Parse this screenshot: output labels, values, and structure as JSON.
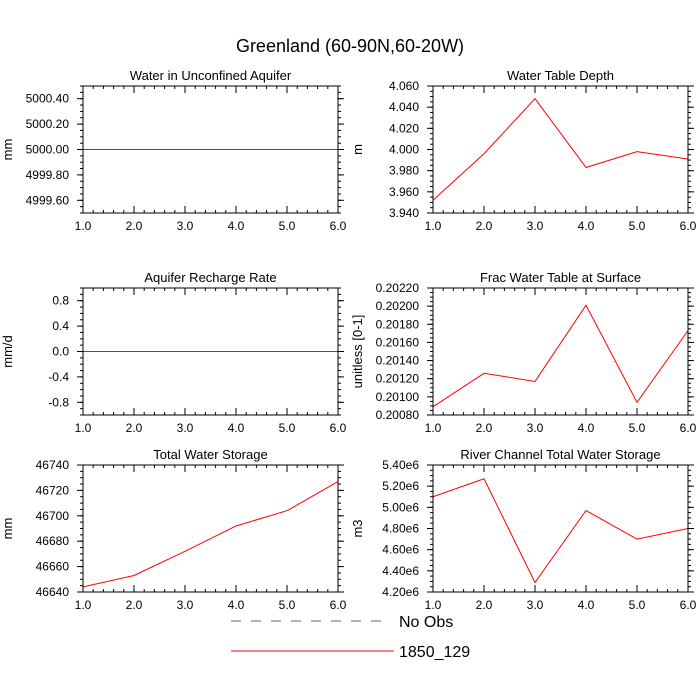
{
  "figure": {
    "title": "Greenland (60-90N,60-20W)"
  },
  "legend": {
    "entries": [
      {
        "label": "No Obs",
        "color": "#5a5aa8",
        "style": "dashed"
      },
      {
        "label": "1850_129",
        "color": "#ff0000",
        "style": "solid"
      }
    ]
  },
  "chart_data": [
    {
      "type": "line",
      "title": "Water in Unconfined Aquifer",
      "xlabel": "",
      "ylabel": "mm",
      "x": [
        1,
        2,
        3,
        4,
        5,
        6
      ],
      "series": [
        {
          "name": "1850_129",
          "values": [
            5000,
            5000,
            5000,
            5000,
            5000,
            5000
          ]
        }
      ],
      "xlim": [
        1,
        6
      ],
      "ylim": [
        4999.5,
        5000.5
      ],
      "xticks": [
        "1.0",
        "2.0",
        "3.0",
        "4.0",
        "5.0",
        "6.0"
      ],
      "yticks": [
        4999.6,
        4999.8,
        5000.0,
        5000.2,
        5000.4
      ],
      "yticklabels": [
        "4999.60",
        "4999.80",
        "5000.00",
        "5000.20",
        "5000.40"
      ]
    },
    {
      "type": "line",
      "title": "Water Table Depth",
      "xlabel": "",
      "ylabel": "m",
      "x": [
        1,
        2,
        3,
        4,
        5,
        6
      ],
      "series": [
        {
          "name": "1850_129",
          "values": [
            3.952,
            3.996,
            4.048,
            3.983,
            3.998,
            3.991
          ]
        }
      ],
      "xlim": [
        1,
        6
      ],
      "ylim": [
        3.94,
        4.06
      ],
      "xticks": [
        "1.0",
        "2.0",
        "3.0",
        "4.0",
        "5.0",
        "6.0"
      ],
      "yticks": [
        3.94,
        3.96,
        3.98,
        4.0,
        4.02,
        4.04,
        4.06
      ],
      "yticklabels": [
        "3.940",
        "3.960",
        "3.980",
        "4.000",
        "4.020",
        "4.040",
        "4.060"
      ]
    },
    {
      "type": "line",
      "title": "Aquifer Recharge Rate",
      "xlabel": "",
      "ylabel": "mm/d",
      "x": [
        1,
        2,
        3,
        4,
        5,
        6
      ],
      "series": [
        {
          "name": "1850_129",
          "values": [
            0,
            0,
            0,
            0,
            0,
            0
          ]
        }
      ],
      "xlim": [
        1,
        6
      ],
      "ylim": [
        -1.0,
        1.0
      ],
      "xticks": [
        "1.0",
        "2.0",
        "3.0",
        "4.0",
        "5.0",
        "6.0"
      ],
      "yticks": [
        -0.8,
        -0.4,
        0.0,
        0.4,
        0.8
      ],
      "yticklabels": [
        "-0.8",
        "-0.4",
        "0.0",
        "0.4",
        "0.8"
      ]
    },
    {
      "type": "line",
      "title": "Frac Water Table at Surface",
      "xlabel": "",
      "ylabel": "unitless [0-1]",
      "x": [
        1,
        2,
        3,
        4,
        5,
        6
      ],
      "series": [
        {
          "name": "1850_129",
          "values": [
            0.20089,
            0.20126,
            0.20117,
            0.20201,
            0.20094,
            0.20173
          ]
        }
      ],
      "xlim": [
        1,
        6
      ],
      "ylim": [
        0.2008,
        0.2022
      ],
      "xticks": [
        "1.0",
        "2.0",
        "3.0",
        "4.0",
        "5.0",
        "6.0"
      ],
      "yticks": [
        0.2008,
        0.201,
        0.2012,
        0.2014,
        0.2016,
        0.2018,
        0.202,
        0.2022
      ],
      "yticklabels": [
        "0.20080",
        "0.20100",
        "0.20120",
        "0.20140",
        "0.20160",
        "0.20180",
        "0.20200",
        "0.20220"
      ]
    },
    {
      "type": "line",
      "title": "Total Water Storage",
      "xlabel": "",
      "ylabel": "mm",
      "x": [
        1,
        2,
        3,
        4,
        5,
        6
      ],
      "series": [
        {
          "name": "1850_129",
          "values": [
            46644,
            46653,
            46672,
            46692,
            46704,
            46727
          ]
        }
      ],
      "xlim": [
        1,
        6
      ],
      "ylim": [
        46640,
        46740
      ],
      "xticks": [
        "1.0",
        "2.0",
        "3.0",
        "4.0",
        "5.0",
        "6.0"
      ],
      "yticks": [
        46640,
        46660,
        46680,
        46700,
        46720,
        46740
      ],
      "yticklabels": [
        "46640",
        "46660",
        "46680",
        "46700",
        "46720",
        "46740"
      ]
    },
    {
      "type": "line",
      "title": "River Channel Total Water Storage",
      "xlabel": "",
      "ylabel": "m3",
      "x": [
        1,
        2,
        3,
        4,
        5,
        6
      ],
      "series": [
        {
          "name": "1850_129",
          "values": [
            5100000,
            5270000,
            4290000,
            4970000,
            4700000,
            4800000
          ]
        }
      ],
      "xlim": [
        1,
        6
      ],
      "ylim": [
        4200000,
        5400000
      ],
      "xticks": [
        "1.0",
        "2.0",
        "3.0",
        "4.0",
        "5.0",
        "6.0"
      ],
      "yticks": [
        4200000,
        4400000,
        4600000,
        4800000,
        5000000,
        5200000,
        5400000
      ],
      "yticklabels": [
        "4.20e6",
        "4.40e6",
        "4.60e6",
        "4.80e6",
        "5.00e6",
        "5.20e6",
        "5.40e6"
      ]
    }
  ]
}
